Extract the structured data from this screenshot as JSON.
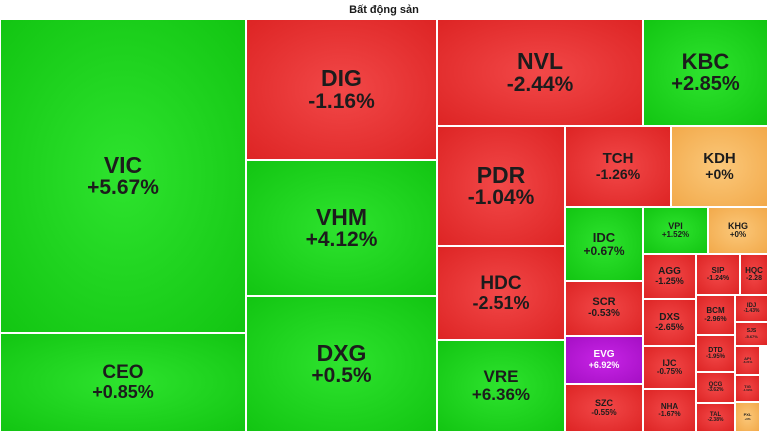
{
  "header": {
    "title": "Bất động sản"
  },
  "colors": {
    "up": "#19cf19",
    "down": "#e83535",
    "flat": "#f6b860",
    "ceiling": "#b61bd4"
  },
  "chart_data": {
    "type": "treemap",
    "title": "Bất động sản",
    "tiles": [
      {
        "symbol": "VIC",
        "change": "+5.67%",
        "value": 5.67
      },
      {
        "symbol": "CEO",
        "change": "+0.85%",
        "value": 0.85
      },
      {
        "symbol": "DIG",
        "change": "-1.16%",
        "value": -1.16
      },
      {
        "symbol": "VHM",
        "change": "+4.12%",
        "value": 4.12
      },
      {
        "symbol": "DXG",
        "change": "+0.5%",
        "value": 0.5
      },
      {
        "symbol": "NVL",
        "change": "-2.44%",
        "value": -2.44
      },
      {
        "symbol": "KBC",
        "change": "+2.85%",
        "value": 2.85
      },
      {
        "symbol": "PDR",
        "change": "-1.04%",
        "value": -1.04
      },
      {
        "symbol": "HDC",
        "change": "-2.51%",
        "value": -2.51
      },
      {
        "symbol": "VRE",
        "change": "+6.36%",
        "value": 6.36
      },
      {
        "symbol": "TCH",
        "change": "-1.26%",
        "value": -1.26
      },
      {
        "symbol": "KDH",
        "change": "+0%",
        "value": 0
      },
      {
        "symbol": "IDC",
        "change": "+0.67%",
        "value": 0.67
      },
      {
        "symbol": "VPI",
        "change": "+1.52%",
        "value": 1.52
      },
      {
        "symbol": "KHG",
        "change": "+0%",
        "value": 0
      },
      {
        "symbol": "SCR",
        "change": "-0.53%",
        "value": -0.53
      },
      {
        "symbol": "EVG",
        "change": "+6.92%",
        "value": 6.92
      },
      {
        "symbol": "SZC",
        "change": "-0.55%",
        "value": -0.55
      },
      {
        "symbol": "AGG",
        "change": "-1.25%",
        "value": -1.25
      },
      {
        "symbol": "SIP",
        "change": "-1.24%",
        "value": -1.24
      },
      {
        "symbol": "HQC",
        "change": "-2.28",
        "value": -2.28
      },
      {
        "symbol": "DXS",
        "change": "-2.65%",
        "value": -2.65
      },
      {
        "symbol": "BCM",
        "change": "-2.96%",
        "value": -2.96
      },
      {
        "symbol": "IDJ",
        "change": "-1.43%",
        "value": -1.43
      },
      {
        "symbol": "SJS",
        "change": "-5.67%",
        "value": -5.67
      },
      {
        "symbol": "IJC",
        "change": "-0.75%",
        "value": -0.75
      },
      {
        "symbol": "DTD",
        "change": "-1.95%",
        "value": -1.95
      },
      {
        "symbol": "API",
        "change": "-6.21%",
        "value": -6.21
      },
      {
        "symbol": "NHA",
        "change": "-1.67%",
        "value": -1.67
      },
      {
        "symbol": "QCG",
        "change": "-3.62%",
        "value": -3.62
      },
      {
        "symbol": "TIG",
        "change": "-1.69%",
        "value": -1.69
      },
      {
        "symbol": "TAL",
        "change": "-2.38%",
        "value": -2.38
      },
      {
        "symbol": "PXL",
        "change": "+0%",
        "value": 0
      }
    ]
  }
}
